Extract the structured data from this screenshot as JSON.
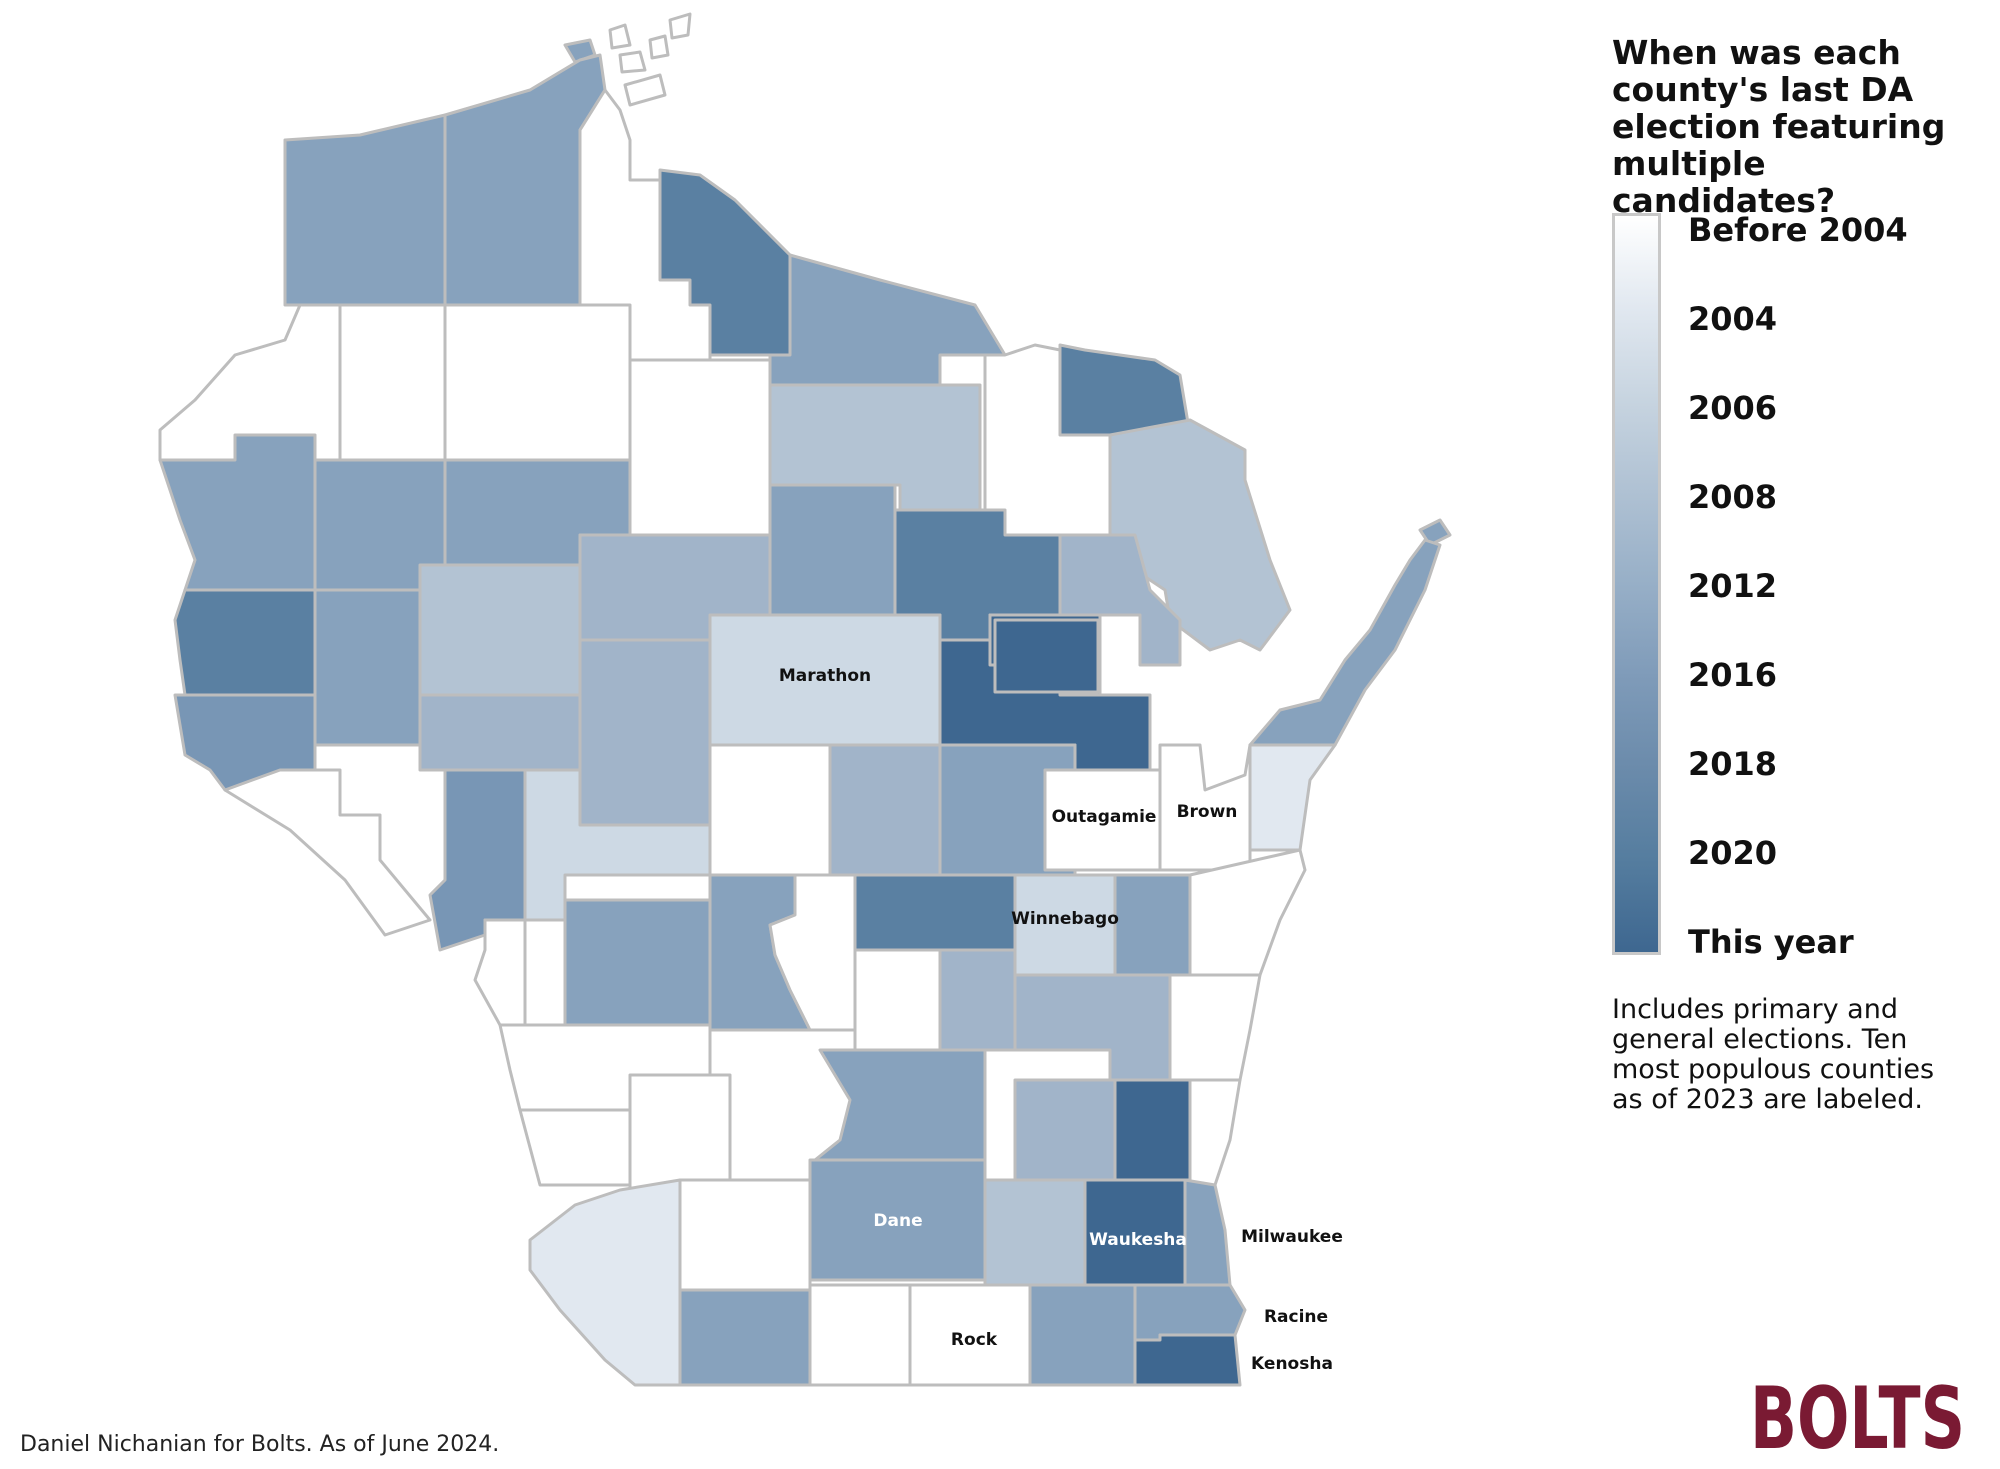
{
  "legend": {
    "title": "When was each county's last DA election featuring multiple candidates?",
    "ticks": [
      "Before 2004",
      "2004",
      "2006",
      "2008",
      "2012",
      "2016",
      "2018",
      "2020",
      "This year"
    ],
    "gradient_colors": [
      "#ffffff",
      "#e1e8f0",
      "#c7d4e0",
      "#afc1d3",
      "#97afc7",
      "#7f9bb9",
      "#6b8bab",
      "#557d9f",
      "#3e6790"
    ],
    "note": "Includes primary and general elections. Ten most populous counties as of 2023 are labeled."
  },
  "category_colors": {
    "before2004": "#ffffff",
    "y2004": "#e1e8f0",
    "y2006": "#cdd9e4",
    "y2008": "#b3c3d3",
    "y2012": "#a1b4c9",
    "y2016": "#87a2bd",
    "y2018": "#7896b5",
    "y2020": "#5a80a2",
    "this_year": "#3e6790"
  },
  "county_labels": {
    "marathon": "Marathon",
    "outagamie": "Outagamie",
    "brown": "Brown",
    "winnebago": "Winnebago",
    "dane": "Dane",
    "waukesha": "Waukesha",
    "milwaukee": "Milwaukee",
    "racine": "Racine",
    "kenosha": "Kenosha",
    "rock": "Rock"
  },
  "credit": "Daniel Nichanian for Bolts. As of June 2024.",
  "logo_text": "BOLTS",
  "logo_color": "#7a1a33"
}
